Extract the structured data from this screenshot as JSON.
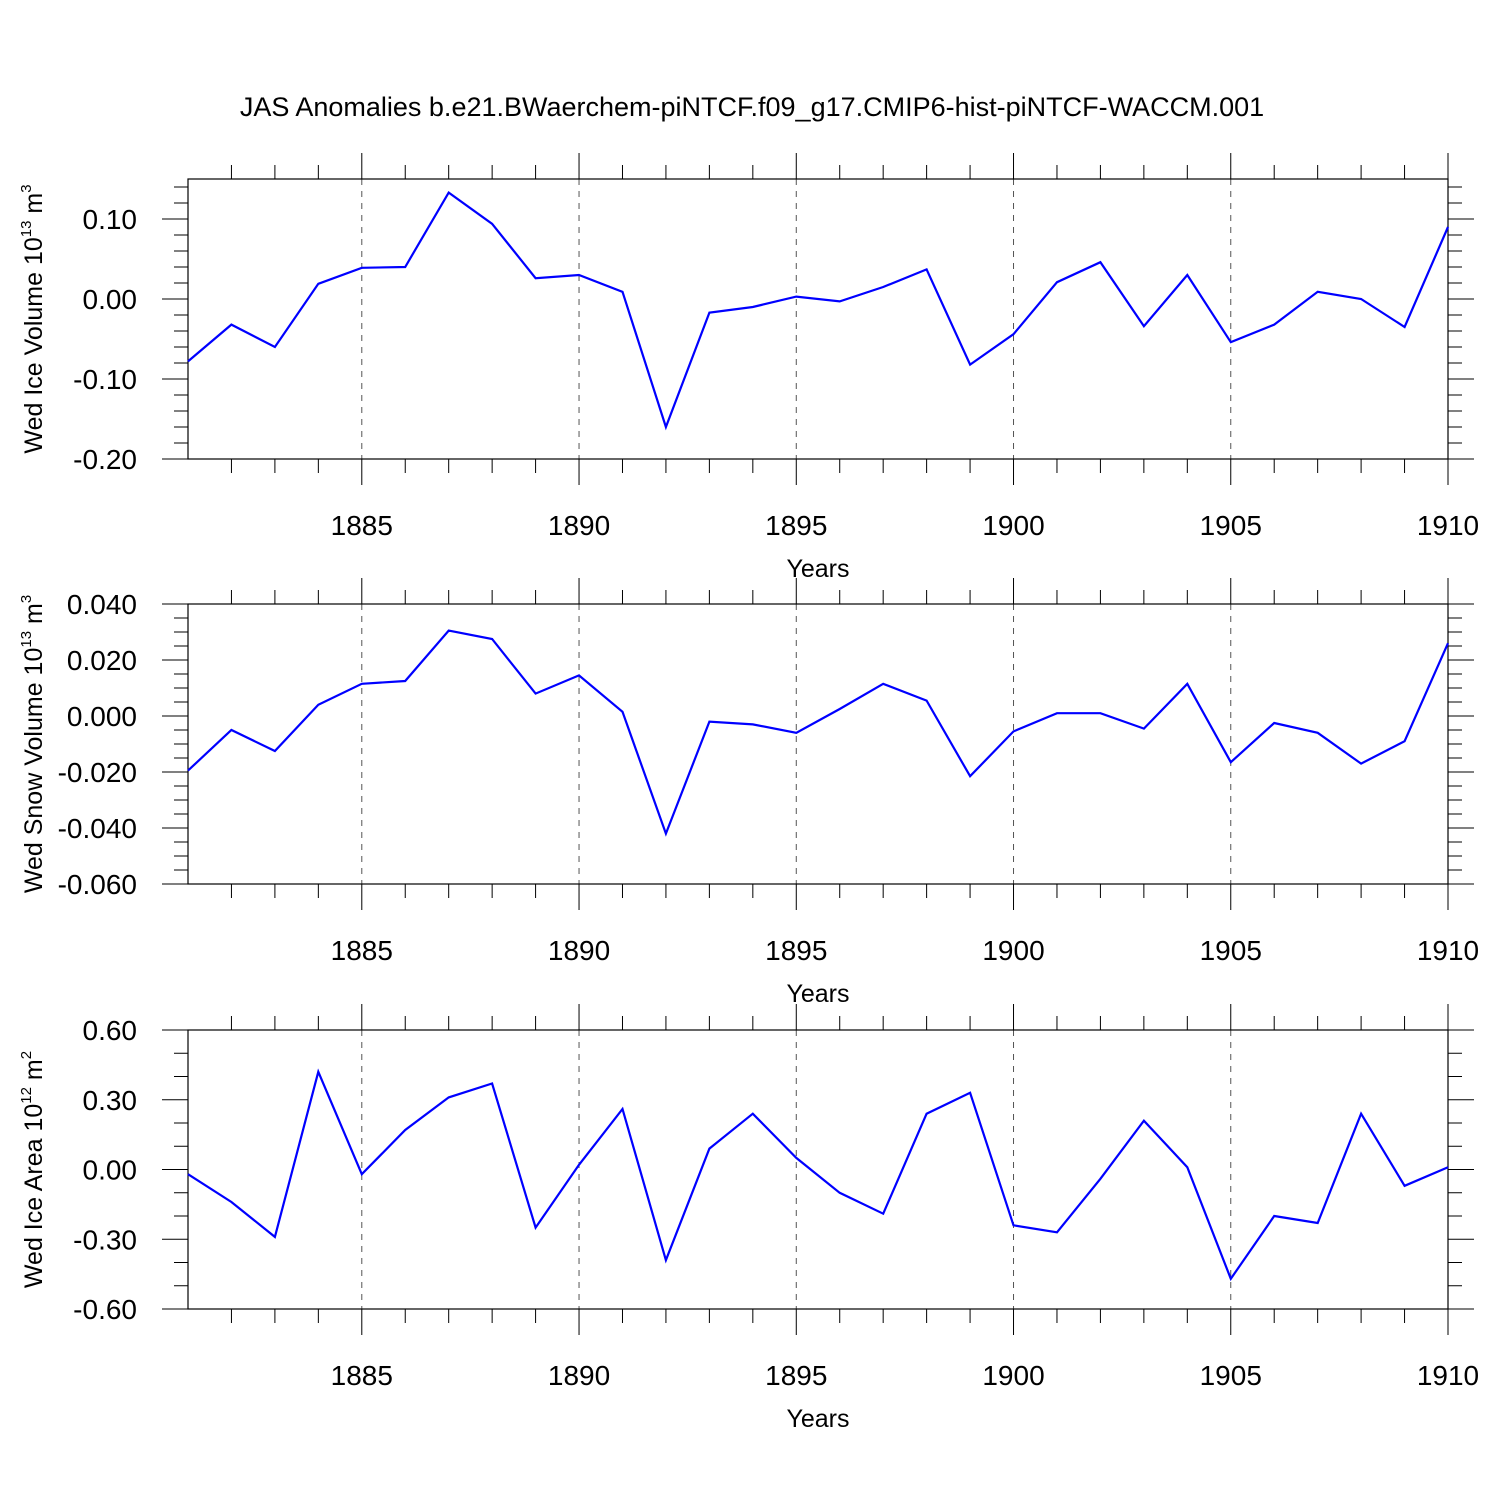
{
  "title": "JAS Anomalies b.e21.BWaerchem-piNTCF.f09_g17.CMIP6-hist-piNTCF-WACCM.001",
  "colors": {
    "line": "#0000ff",
    "axis": "#000000",
    "grid": "#555555"
  },
  "chart_data": [
    {
      "type": "line",
      "ylabel": "Wed Ice Volume",
      "yunit": {
        "base": "10",
        "exp": "13",
        "unit": "m",
        "unit_exp": "3"
      },
      "xlabel": "Years",
      "xlim": [
        1881,
        1910
      ],
      "ylim": [
        -0.2,
        0.15
      ],
      "yticks": [
        -0.2,
        -0.1,
        0.0,
        0.1
      ],
      "ytick_labels": [
        "-0.20",
        "-0.10",
        "0.00",
        "0.10"
      ],
      "yminor_step": 0.02,
      "xticks": [
        1885,
        1890,
        1895,
        1900,
        1905,
        1910
      ],
      "xtick_labels": [
        "1885",
        "1890",
        "1895",
        "1900",
        "1905",
        "1910"
      ],
      "grid": "x-dashed",
      "x": [
        1881,
        1882,
        1883,
        1884,
        1885,
        1886,
        1887,
        1888,
        1889,
        1890,
        1891,
        1892,
        1893,
        1894,
        1895,
        1896,
        1897,
        1898,
        1899,
        1900,
        1901,
        1902,
        1903,
        1904,
        1905,
        1906,
        1907,
        1908,
        1909,
        1910
      ],
      "series": [
        {
          "values": [
            -0.078,
            -0.032,
            -0.06,
            0.019,
            0.039,
            0.04,
            0.133,
            0.094,
            0.026,
            0.03,
            0.009,
            -0.16,
            -0.017,
            -0.01,
            0.003,
            -0.003,
            0.015,
            0.037,
            -0.082,
            -0.044,
            0.021,
            0.046,
            -0.034,
            0.03,
            -0.054,
            -0.032,
            0.009,
            0.0,
            -0.035,
            0.09
          ]
        }
      ]
    },
    {
      "type": "line",
      "ylabel": "Wed Snow Volume",
      "yunit": {
        "base": "10",
        "exp": "13",
        "unit": "m",
        "unit_exp": "3"
      },
      "xlabel": "Years",
      "xlim": [
        1881,
        1910
      ],
      "ylim": [
        -0.06,
        0.04
      ],
      "yticks": [
        -0.06,
        -0.04,
        -0.02,
        0.0,
        0.02,
        0.04
      ],
      "ytick_labels": [
        "-0.060",
        "-0.040",
        "-0.020",
        "0.000",
        "0.020",
        "0.040"
      ],
      "yminor_step": 0.005,
      "xticks": [
        1885,
        1890,
        1895,
        1900,
        1905,
        1910
      ],
      "xtick_labels": [
        "1885",
        "1890",
        "1895",
        "1900",
        "1905",
        "1910"
      ],
      "grid": "x-dashed",
      "x": [
        1881,
        1882,
        1883,
        1884,
        1885,
        1886,
        1887,
        1888,
        1889,
        1890,
        1891,
        1892,
        1893,
        1894,
        1895,
        1896,
        1897,
        1898,
        1899,
        1900,
        1901,
        1902,
        1903,
        1904,
        1905,
        1906,
        1907,
        1908,
        1909,
        1910
      ],
      "series": [
        {
          "values": [
            -0.0195,
            -0.005,
            -0.0125,
            0.004,
            0.0115,
            0.0125,
            0.0305,
            0.0275,
            0.008,
            0.0145,
            0.0015,
            -0.042,
            -0.002,
            -0.003,
            -0.006,
            0.0025,
            0.0115,
            0.0055,
            -0.0215,
            -0.0055,
            0.001,
            0.001,
            -0.0045,
            0.0115,
            -0.0165,
            -0.0025,
            -0.006,
            -0.017,
            -0.009,
            0.026
          ]
        }
      ]
    },
    {
      "type": "line",
      "ylabel": "Wed Ice Area",
      "yunit": {
        "base": "10",
        "exp": "12",
        "unit": "m",
        "unit_exp": "2"
      },
      "xlabel": "Years",
      "xlim": [
        1881,
        1910
      ],
      "ylim": [
        -0.6,
        0.6
      ],
      "yticks": [
        -0.6,
        -0.3,
        0.0,
        0.3,
        0.6
      ],
      "ytick_labels": [
        "-0.60",
        "-0.30",
        "0.00",
        "0.30",
        "0.60"
      ],
      "yminor_step": 0.1,
      "xticks": [
        1885,
        1890,
        1895,
        1900,
        1905,
        1910
      ],
      "xtick_labels": [
        "1885",
        "1890",
        "1895",
        "1900",
        "1905",
        "1910"
      ],
      "grid": "x-dashed",
      "x": [
        1881,
        1882,
        1883,
        1884,
        1885,
        1886,
        1887,
        1888,
        1889,
        1890,
        1891,
        1892,
        1893,
        1894,
        1895,
        1896,
        1897,
        1898,
        1899,
        1900,
        1901,
        1902,
        1903,
        1904,
        1905,
        1906,
        1907,
        1908,
        1909,
        1910
      ],
      "series": [
        {
          "values": [
            -0.02,
            -0.14,
            -0.29,
            0.42,
            -0.02,
            0.17,
            0.31,
            0.37,
            -0.25,
            0.02,
            0.26,
            -0.39,
            0.09,
            0.24,
            0.05,
            -0.1,
            -0.19,
            0.24,
            0.33,
            -0.24,
            -0.27,
            -0.04,
            0.21,
            0.01,
            -0.47,
            -0.2,
            -0.23,
            0.24,
            -0.07,
            0.01
          ]
        }
      ]
    }
  ]
}
